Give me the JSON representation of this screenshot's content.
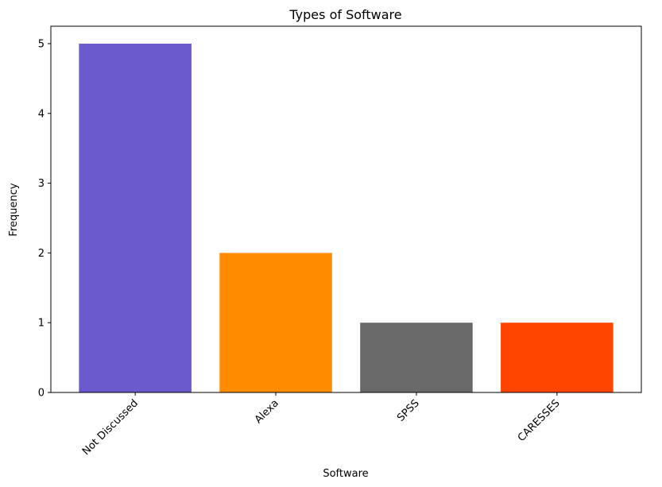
{
  "chart_data": {
    "type": "bar",
    "title": "Types of Software",
    "xlabel": "Software",
    "ylabel": "Frequency",
    "categories": [
      "Not Discussed",
      "Alexa",
      "SPSS",
      "CARESSES"
    ],
    "values": [
      5,
      2,
      1,
      1
    ],
    "colors": [
      "#6a5acd",
      "#ff8c00",
      "#696969",
      "#ff4500"
    ],
    "ylim": [
      0,
      5.25
    ],
    "yticks": [
      0,
      1,
      2,
      3,
      4,
      5
    ],
    "grid": false,
    "legend": "none"
  }
}
